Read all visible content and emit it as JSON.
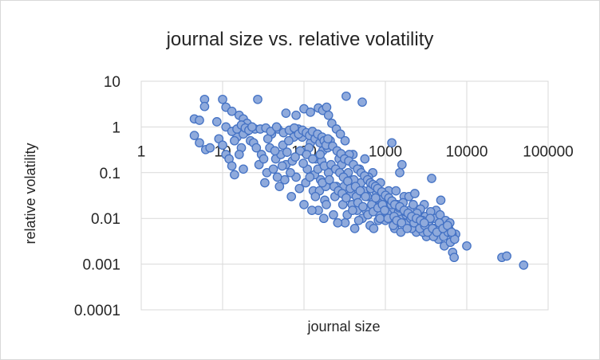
{
  "chart_data": {
    "type": "scatter",
    "title": "journal size vs. relative volatility",
    "xlabel": "journal size",
    "ylabel": "relative volatility",
    "x_scale": "log",
    "y_scale": "log",
    "xlim": [
      1,
      100000
    ],
    "ylim": [
      0.0001,
      10
    ],
    "x_ticks": [
      "1",
      "10",
      "100",
      "1000",
      "10000",
      "100000"
    ],
    "y_ticks": [
      "10",
      "1",
      "0.1",
      "0.01",
      "0.001",
      "0.0001"
    ],
    "grid": true,
    "marker_color": "#4472c4",
    "marker_fill": "#8faadc",
    "series": [
      {
        "points": [
          [
            4.5,
            1.5
          ],
          [
            5.2,
            1.4
          ],
          [
            4.5,
            0.65
          ],
          [
            5.2,
            0.45
          ],
          [
            6.0,
            4.0
          ],
          [
            6.0,
            2.8
          ],
          [
            6.2,
            0.32
          ],
          [
            7.0,
            0.35
          ],
          [
            8.5,
            1.3
          ],
          [
            10,
            4.0
          ],
          [
            11,
            2.7
          ],
          [
            13,
            2.2
          ],
          [
            16,
            1.8
          ],
          [
            18,
            1.5
          ],
          [
            20,
            1.2
          ],
          [
            27,
            4.0
          ],
          [
            9,
            0.55
          ],
          [
            10,
            0.4
          ],
          [
            11,
            0.25
          ],
          [
            12,
            0.2
          ],
          [
            13,
            0.14
          ],
          [
            14,
            0.09
          ],
          [
            15,
            0.6
          ],
          [
            17,
            0.35
          ],
          [
            18,
            0.12
          ],
          [
            22,
            0.5
          ],
          [
            25,
            0.9
          ],
          [
            30,
            0.25
          ],
          [
            35,
            0.1
          ],
          [
            40,
            0.7
          ],
          [
            45,
            0.2
          ],
          [
            50,
            0.05
          ],
          [
            55,
            0.4
          ],
          [
            60,
            0.15
          ],
          [
            70,
            0.03
          ],
          [
            75,
            0.6
          ],
          [
            80,
            0.08
          ],
          [
            90,
            0.3
          ],
          [
            100,
            0.02
          ],
          [
            110,
            0.12
          ],
          [
            120,
            0.45
          ],
          [
            130,
            0.04
          ],
          [
            140,
            0.2
          ],
          [
            150,
            0.015
          ],
          [
            160,
            0.07
          ],
          [
            170,
            0.3
          ],
          [
            180,
            0.025
          ],
          [
            200,
            0.1
          ],
          [
            210,
            0.5
          ],
          [
            230,
            0.012
          ],
          [
            250,
            0.05
          ],
          [
            270,
            0.2
          ],
          [
            300,
            0.02
          ],
          [
            320,
            0.008
          ],
          [
            350,
            0.1
          ],
          [
            380,
            0.035
          ],
          [
            400,
            0.25
          ],
          [
            420,
            0.006
          ],
          [
            450,
            0.015
          ],
          [
            500,
            0.06
          ],
          [
            520,
            0.01
          ],
          [
            560,
            0.2
          ],
          [
            600,
            0.03
          ],
          [
            650,
            0.007
          ],
          [
            700,
            0.1
          ],
          [
            750,
            0.018
          ],
          [
            800,
            0.05
          ],
          [
            850,
            0.012
          ],
          [
            900,
            0.025
          ],
          [
            1000,
            0.009
          ],
          [
            1100,
            0.04
          ],
          [
            1200,
            0.015
          ],
          [
            1300,
            0.006
          ],
          [
            1400,
            0.02
          ],
          [
            1500,
            0.1
          ],
          [
            1600,
            0.011
          ],
          [
            1700,
            0.03
          ],
          [
            1900,
            0.008
          ],
          [
            2000,
            0.015
          ],
          [
            2200,
            0.02
          ],
          [
            2400,
            0.005
          ],
          [
            2600,
            0.012
          ],
          [
            2800,
            0.007
          ],
          [
            3000,
            0.02
          ],
          [
            3200,
            0.004
          ],
          [
            3500,
            0.009
          ],
          [
            3700,
            0.075
          ],
          [
            4000,
            0.006
          ],
          [
            4200,
            0.015
          ],
          [
            4500,
            0.0035
          ],
          [
            4800,
            0.025
          ],
          [
            5000,
            0.008
          ],
          [
            5300,
            0.0025
          ],
          [
            5600,
            0.005
          ],
          [
            6000,
            0.006
          ],
          [
            6300,
            0.003
          ],
          [
            6700,
            0.0018
          ],
          [
            7000,
            0.0014
          ],
          [
            7300,
            0.0045
          ],
          [
            10000,
            0.0025
          ],
          [
            27000,
            0.0014
          ],
          [
            31000,
            0.0015
          ],
          [
            50000,
            0.00095
          ],
          [
            330,
            4.7
          ],
          [
            520,
            3.5
          ],
          [
            1200,
            0.45
          ],
          [
            1600,
            0.15
          ],
          [
            60,
            2.0
          ],
          [
            80,
            1.8
          ],
          [
            100,
            2.5
          ],
          [
            120,
            2.1
          ],
          [
            150,
            2.6
          ],
          [
            170,
            2.3
          ],
          [
            190,
            2.7
          ],
          [
            200,
            1.8
          ],
          [
            220,
            1.2
          ],
          [
            250,
            0.9
          ],
          [
            280,
            0.7
          ],
          [
            320,
            0.5
          ],
          [
            20,
            0.8
          ],
          [
            24,
            0.45
          ],
          [
            28,
            0.15
          ],
          [
            33,
            0.06
          ],
          [
            38,
            0.35
          ],
          [
            42,
            0.12
          ],
          [
            48,
            0.9
          ],
          [
            52,
            0.25
          ],
          [
            58,
            0.07
          ],
          [
            65,
            0.5
          ],
          [
            72,
            0.18
          ],
          [
            85,
            0.9
          ],
          [
            95,
            0.6
          ],
          [
            105,
            0.06
          ],
          [
            115,
            0.35
          ],
          [
            125,
            0.015
          ],
          [
            135,
            0.09
          ],
          [
            145,
            0.6
          ],
          [
            155,
            0.04
          ],
          [
            165,
            0.18
          ],
          [
            175,
            0.01
          ],
          [
            185,
            0.05
          ],
          [
            195,
            0.35
          ],
          [
            240,
            0.03
          ],
          [
            260,
            0.008
          ],
          [
            290,
            0.15
          ],
          [
            310,
            0.05
          ],
          [
            340,
            0.012
          ],
          [
            360,
            0.25
          ],
          [
            390,
            0.02
          ],
          [
            410,
            0.07
          ],
          [
            440,
            0.03
          ],
          [
            470,
            0.009
          ],
          [
            480,
            0.12
          ],
          [
            540,
            0.04
          ],
          [
            580,
            0.015
          ],
          [
            620,
            0.08
          ],
          [
            680,
            0.02
          ],
          [
            720,
            0.006
          ],
          [
            780,
            0.035
          ],
          [
            820,
            0.009
          ],
          [
            870,
            0.06
          ],
          [
            950,
            0.03
          ],
          [
            1050,
            0.013
          ],
          [
            1150,
            0.025
          ],
          [
            1250,
            0.007
          ],
          [
            1350,
            0.04
          ],
          [
            1450,
            0.014
          ],
          [
            1550,
            0.005
          ],
          [
            1650,
            0.022
          ],
          [
            1800,
            0.012
          ],
          [
            1950,
            0.03
          ],
          [
            2100,
            0.006
          ],
          [
            2300,
            0.035
          ],
          [
            2500,
            0.009
          ],
          [
            2700,
            0.016
          ],
          [
            2900,
            0.005
          ],
          [
            3100,
            0.011
          ],
          [
            3400,
            0.007
          ],
          [
            3600,
            0.014
          ],
          [
            3900,
            0.004
          ],
          [
            4100,
            0.01
          ],
          [
            4400,
            0.006
          ],
          [
            4700,
            0.012
          ],
          [
            5200,
            0.004
          ],
          [
            5500,
            0.009
          ],
          [
            5900,
            0.005
          ],
          [
            6200,
            0.008
          ],
          [
            6600,
            0.0045
          ],
          [
            7100,
            0.0035
          ],
          [
            14,
            0.5
          ],
          [
            16,
            0.25
          ],
          [
            18,
            0.7
          ],
          [
            26,
            0.35
          ],
          [
            32,
            0.2
          ],
          [
            36,
            0.55
          ],
          [
            44,
            0.3
          ],
          [
            47,
            0.08
          ],
          [
            54,
            0.14
          ],
          [
            62,
            0.28
          ],
          [
            68,
            0.1
          ],
          [
            78,
            0.22
          ],
          [
            88,
            0.045
          ],
          [
            98,
            0.16
          ],
          [
            108,
            0.25
          ],
          [
            118,
            0.08
          ],
          [
            128,
            0.2
          ],
          [
            138,
            0.03
          ],
          [
            148,
            0.12
          ],
          [
            158,
            0.25
          ],
          [
            168,
            0.06
          ],
          [
            178,
            0.14
          ],
          [
            188,
            0.02
          ],
          [
            205,
            0.07
          ],
          [
            215,
            0.15
          ],
          [
            235,
            0.05
          ],
          [
            245,
            0.12
          ],
          [
            265,
            0.04
          ],
          [
            275,
            0.1
          ],
          [
            295,
            0.035
          ],
          [
            305,
            0.08
          ],
          [
            330,
            0.028
          ],
          [
            345,
            0.065
          ],
          [
            370,
            0.045
          ],
          [
            395,
            0.015
          ],
          [
            430,
            0.05
          ],
          [
            460,
            0.022
          ],
          [
            490,
            0.04
          ],
          [
            530,
            0.018
          ],
          [
            570,
            0.03
          ],
          [
            610,
            0.012
          ],
          [
            660,
            0.045
          ],
          [
            710,
            0.014
          ],
          [
            760,
            0.028
          ],
          [
            810,
            0.017
          ],
          [
            860,
            0.01
          ],
          [
            920,
            0.02
          ],
          [
            980,
            0.015
          ],
          [
            1080,
            0.01
          ],
          [
            1180,
            0.02
          ],
          [
            1280,
            0.011
          ],
          [
            1380,
            0.009
          ],
          [
            1480,
            0.017
          ],
          [
            1580,
            0.008
          ],
          [
            1750,
            0.014
          ],
          [
            1850,
            0.006
          ],
          [
            2050,
            0.01
          ],
          [
            2250,
            0.008
          ],
          [
            2450,
            0.013
          ],
          [
            2650,
            0.006
          ],
          [
            2850,
            0.009
          ],
          [
            3050,
            0.007
          ],
          [
            3300,
            0.005
          ],
          [
            3550,
            0.01
          ],
          [
            3800,
            0.006
          ],
          [
            4300,
            0.005
          ],
          [
            4600,
            0.008
          ],
          [
            5100,
            0.006
          ],
          [
            5800,
            0.007
          ],
          [
            6500,
            0.005
          ],
          [
            11,
            1.0
          ],
          [
            13,
            0.8
          ],
          [
            15,
            0.9
          ],
          [
            17,
            1.1
          ],
          [
            19,
            0.95
          ],
          [
            21,
            0.85
          ],
          [
            23,
            1.0
          ],
          [
            29,
            0.9
          ],
          [
            34,
            0.95
          ],
          [
            39,
            0.8
          ],
          [
            46,
            1.0
          ],
          [
            56,
            0.75
          ],
          [
            66,
            0.85
          ],
          [
            76,
            0.95
          ],
          [
            86,
            0.7
          ],
          [
            96,
            0.85
          ],
          [
            107,
            0.75
          ],
          [
            117,
            0.65
          ],
          [
            127,
            0.8
          ],
          [
            137,
            0.55
          ],
          [
            147,
            0.7
          ],
          [
            157,
            0.45
          ],
          [
            167,
            0.6
          ],
          [
            177,
            0.5
          ],
          [
            187,
            0.4
          ],
          [
            197,
            0.55
          ],
          [
            225,
            0.38
          ],
          [
            255,
            0.3
          ],
          [
            285,
            0.26
          ],
          [
            315,
            0.2
          ],
          [
            355,
            0.18
          ],
          [
            405,
            0.15
          ],
          [
            455,
            0.12
          ],
          [
            505,
            0.1
          ],
          [
            555,
            0.085
          ],
          [
            605,
            0.07
          ],
          [
            655,
            0.06
          ],
          [
            705,
            0.055
          ],
          [
            755,
            0.05
          ],
          [
            805,
            0.045
          ],
          [
            905,
            0.038
          ],
          [
            1005,
            0.032
          ],
          [
            1105,
            0.028
          ],
          [
            1205,
            0.024
          ],
          [
            1305,
            0.02
          ],
          [
            1505,
            0.018
          ],
          [
            1705,
            0.015
          ],
          [
            1905,
            0.013
          ],
          [
            2105,
            0.011
          ],
          [
            2405,
            0.01
          ],
          [
            2705,
            0.009
          ],
          [
            3005,
            0.008
          ]
        ]
      }
    ]
  }
}
